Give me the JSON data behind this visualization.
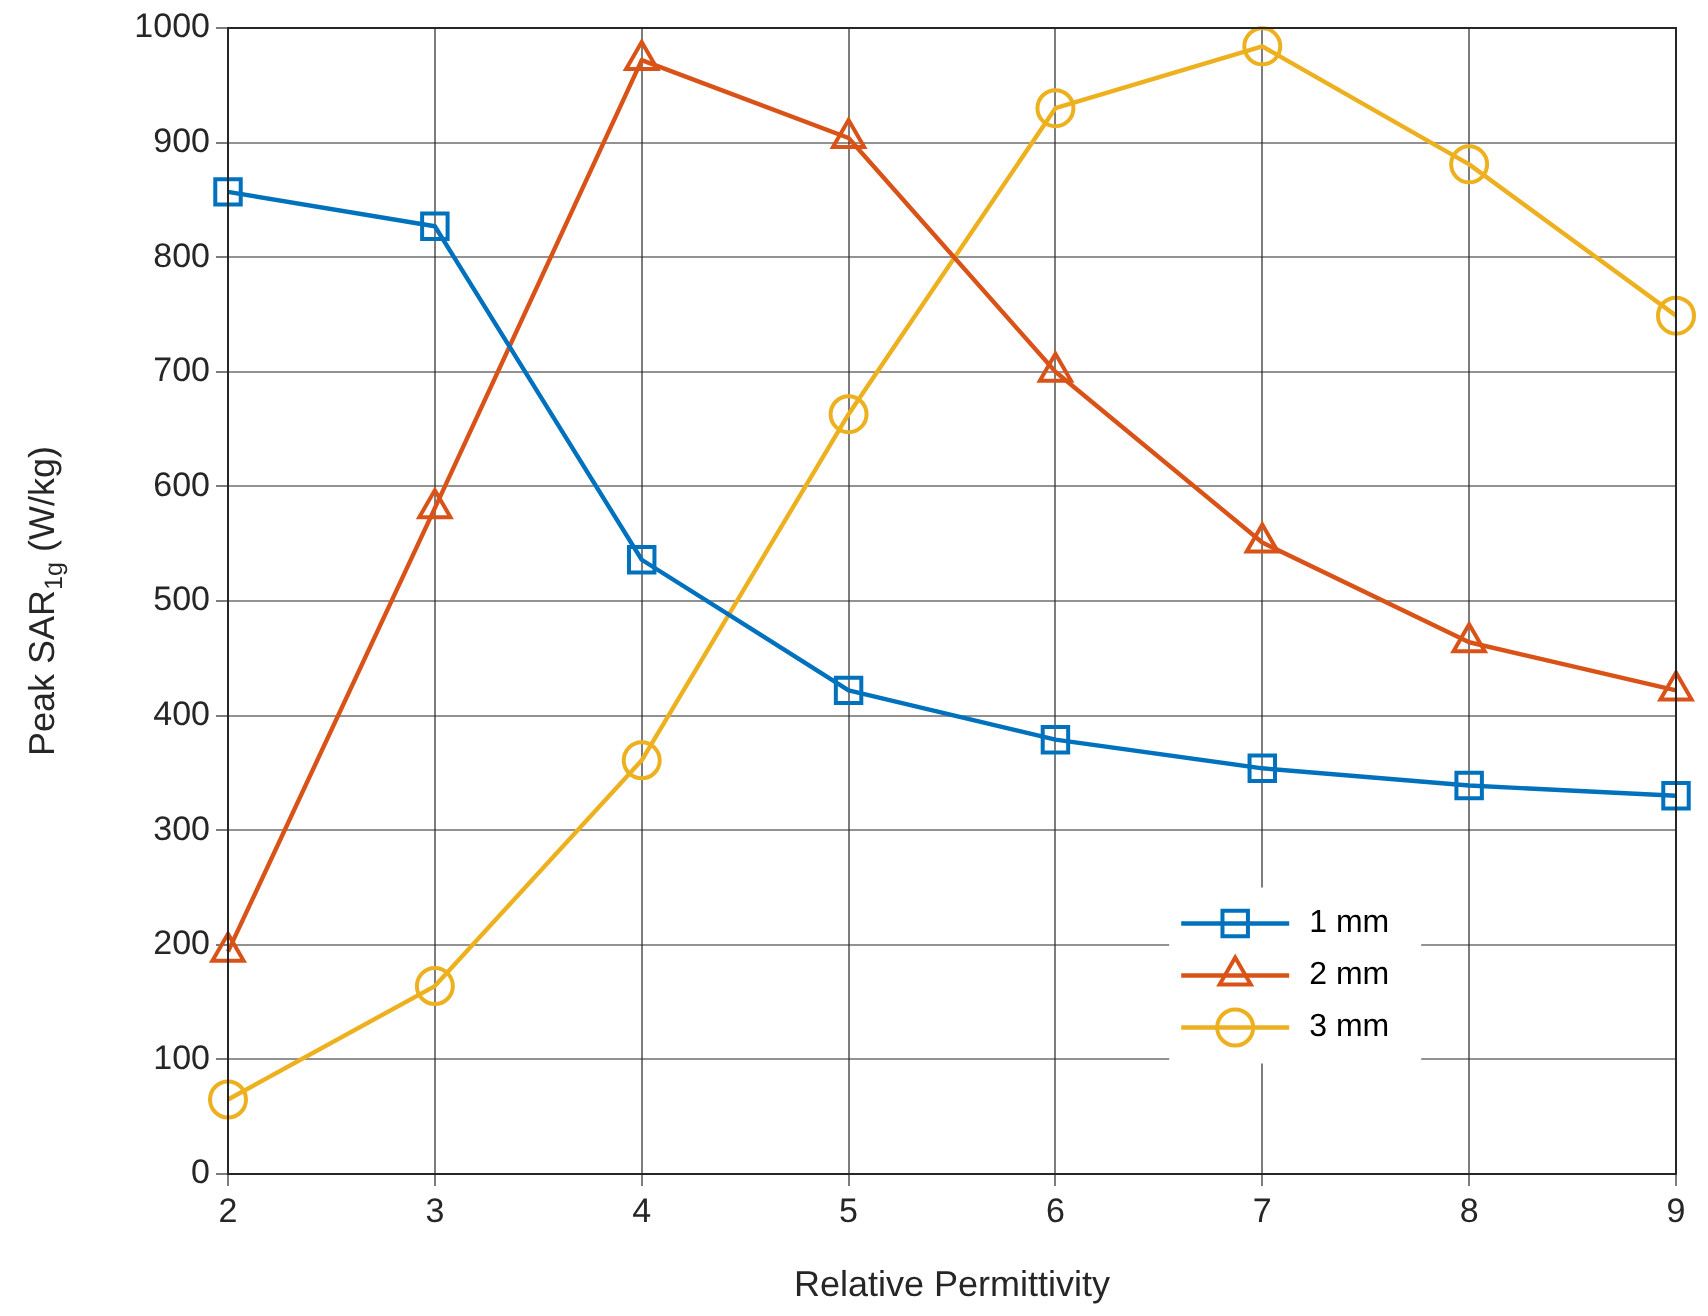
{
  "chart_data": {
    "type": "line",
    "xlabel": "Relative Permittivity",
    "ylabel": "Peak SAR$_{1g}$ (W/kg)",
    "x": [
      2,
      3,
      4,
      5,
      6,
      7,
      8,
      9
    ],
    "xlim": [
      2,
      9
    ],
    "xticks": [
      2,
      3,
      4,
      5,
      6,
      7,
      8,
      9
    ],
    "ylim": [
      0,
      1000
    ],
    "yticks": [
      0,
      100,
      200,
      300,
      400,
      500,
      600,
      700,
      800,
      900,
      1000
    ],
    "grid": true,
    "legend": "bottom right",
    "line_style": "solid",
    "series": [
      {
        "name": "1 mm",
        "color": "#0072bd",
        "marker": "square",
        "values": [
          857,
          827,
          536,
          422,
          379,
          354,
          339,
          330
        ]
      },
      {
        "name": "2 mm",
        "color": "#d95319",
        "marker": "triangle",
        "values": [
          194,
          581,
          972,
          904,
          700,
          551,
          464,
          422
        ]
      },
      {
        "name": "3 mm",
        "color": "#edb120",
        "marker": "circle",
        "values": [
          65,
          164,
          361,
          663,
          930,
          984,
          881,
          749
        ]
      }
    ]
  }
}
